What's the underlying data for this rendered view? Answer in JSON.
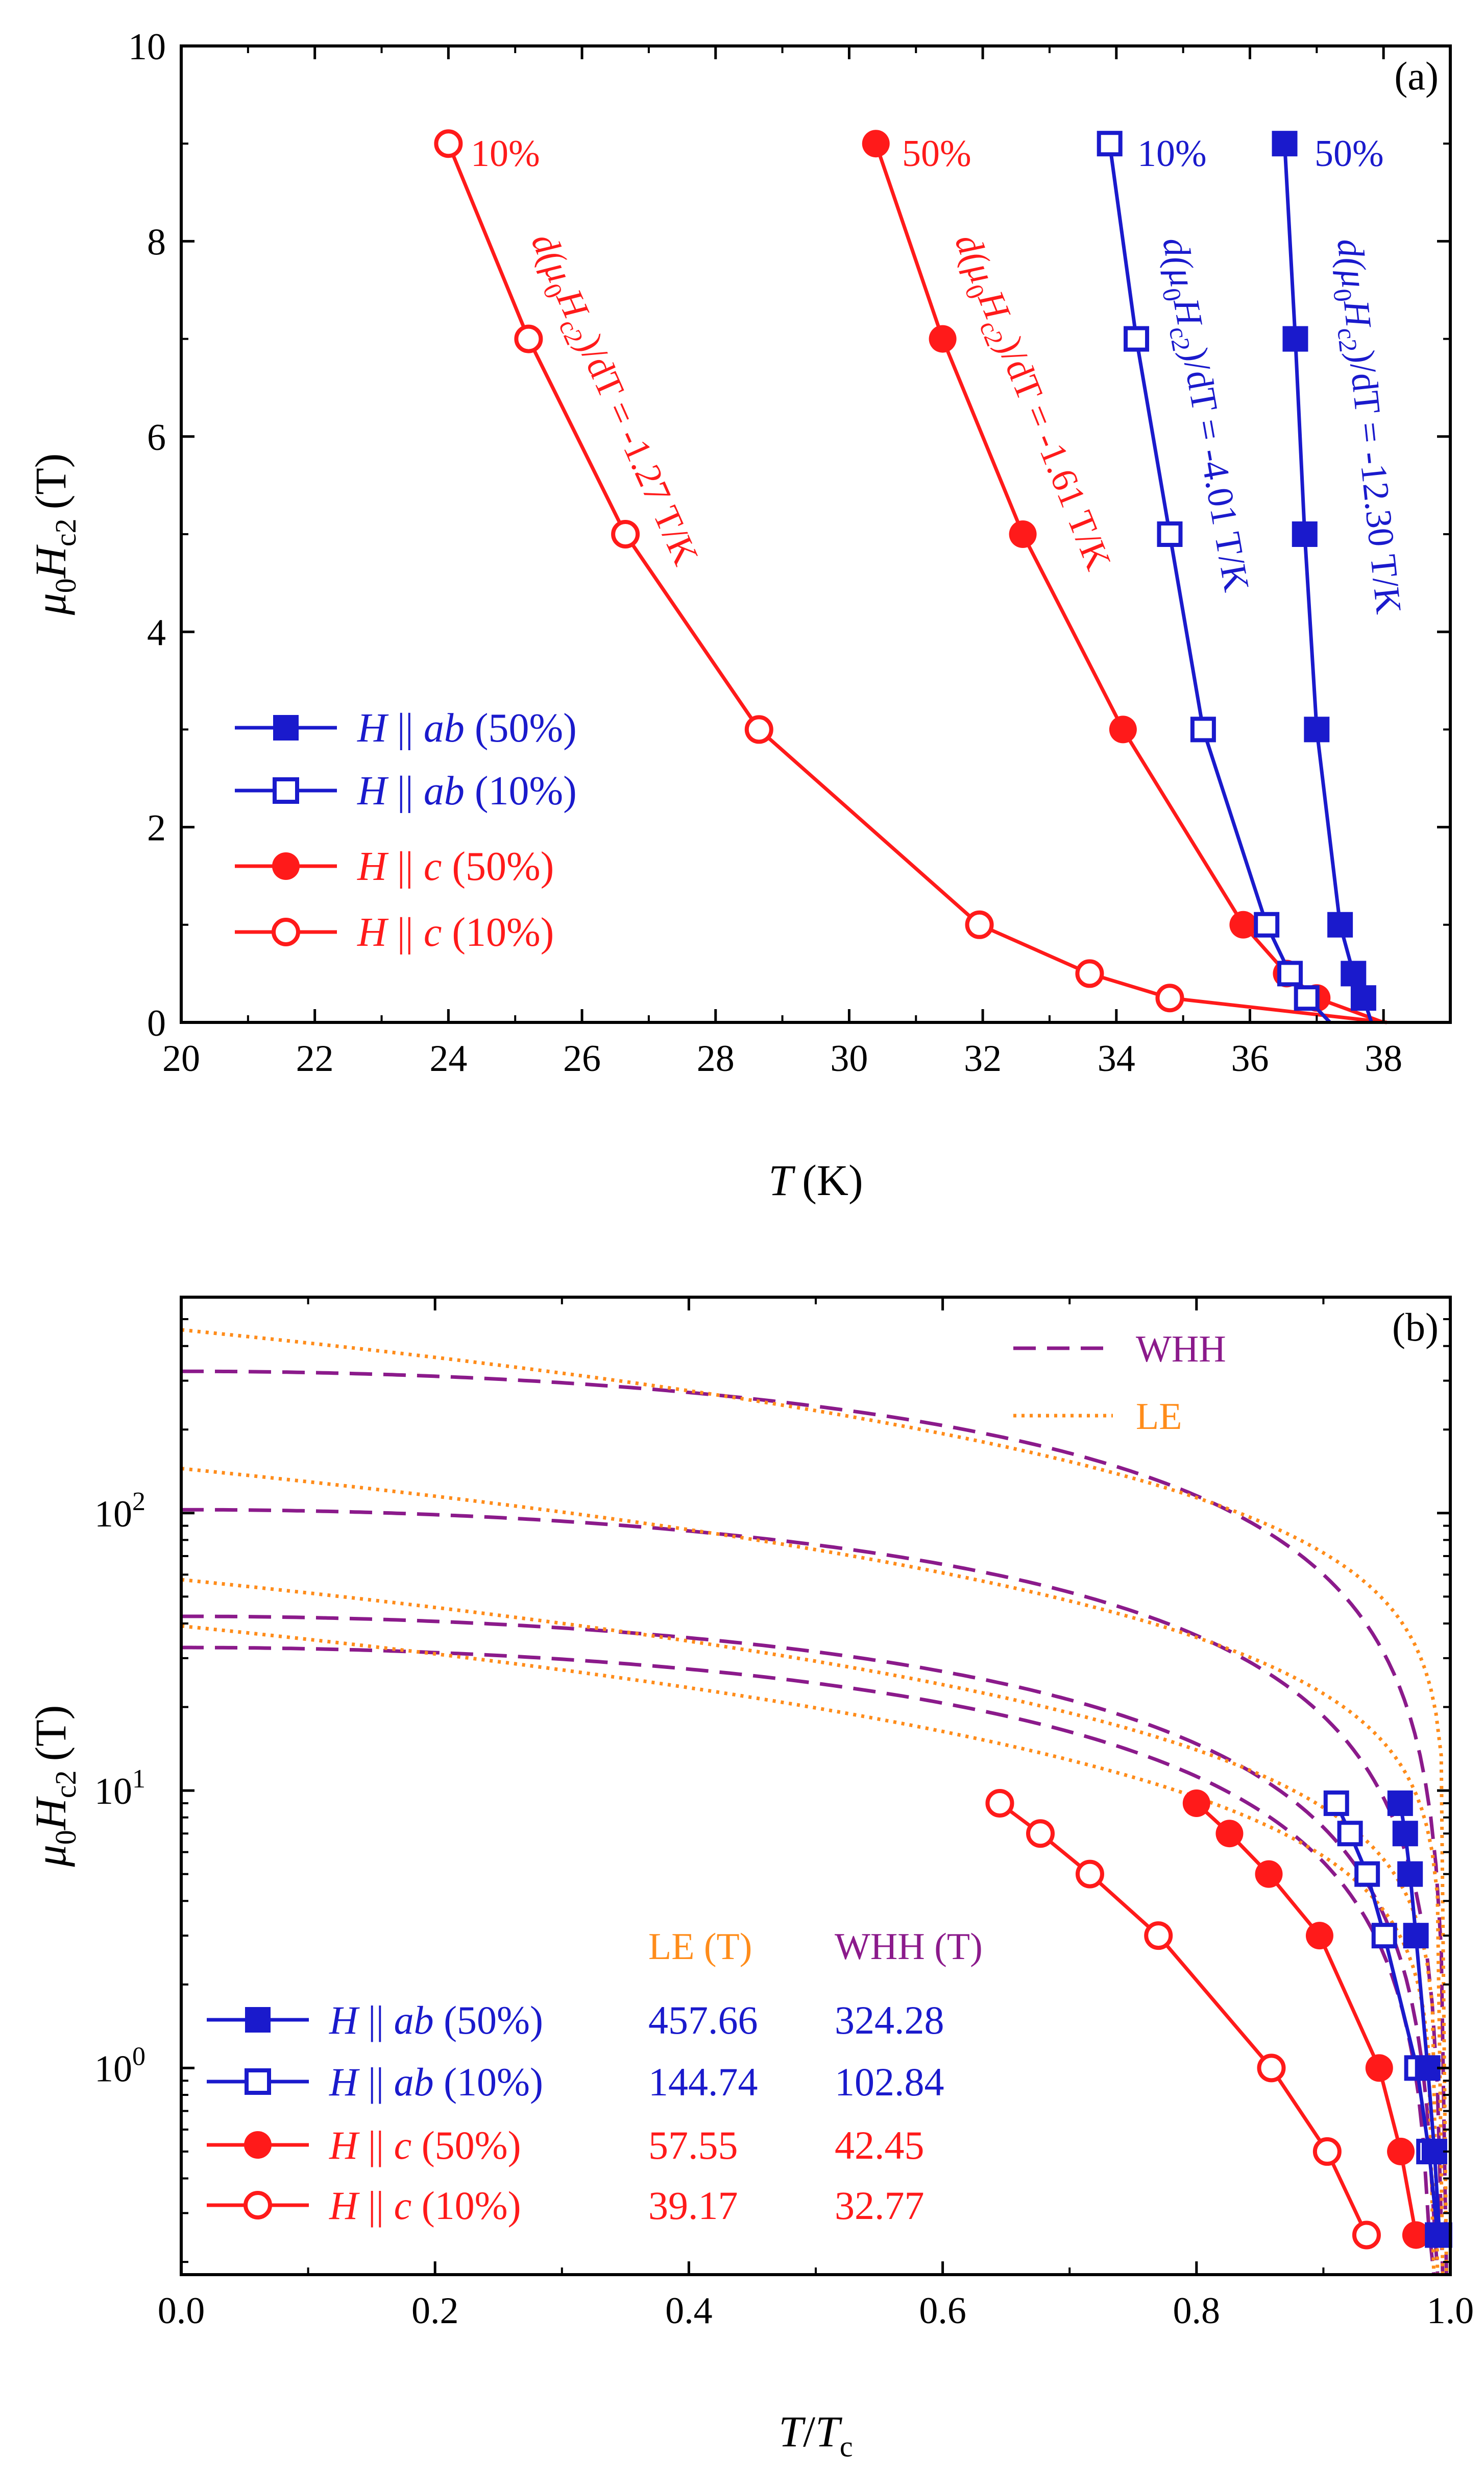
{
  "colors": {
    "red": "#ff1a1a",
    "blue": "#1a1acc",
    "purple": "#8b1a8b",
    "orange": "#ff8c1a",
    "axis": "#000000"
  },
  "panel_a": {
    "label": "(a)",
    "ylabel_main": "μ",
    "ylabel_sub0": "0",
    "ylabel_H": "H",
    "ylabel_subc2": "c2",
    "ylabel_unit": "(T)",
    "xlabel_main": "T",
    "xlabel_unit": "(K)",
    "slope_labels": [
      {
        "text_pre": "d(μ",
        "sub0": "0",
        "mid": "H",
        "subc2": "c2",
        "text_post": ")/dT = -1.27 T/K",
        "series": "c10"
      },
      {
        "text_pre": "d(μ",
        "sub0": "0",
        "mid": "H",
        "subc2": "c2",
        "text_post": ")/dT = -1.61 T/K",
        "series": "c50"
      },
      {
        "text_pre": "d(μ",
        "sub0": "0",
        "mid": "H",
        "subc2": "c2",
        "text_post": ")/dT = -4.01 T/K",
        "series": "ab10"
      },
      {
        "text_pre": "d(μ",
        "sub0": "0",
        "mid": "H",
        "subc2": "c2",
        "text_post": ")/dT = -12.30 T/K",
        "series": "ab50"
      }
    ],
    "point_labels": [
      {
        "text": "10%",
        "series": "c10"
      },
      {
        "text": "50%",
        "series": "c50"
      },
      {
        "text": "10%",
        "series": "ab10"
      },
      {
        "text": "50%",
        "series": "ab50"
      }
    ],
    "legend": [
      {
        "pre": "H",
        "sym": " || ",
        "ax": "ab",
        "pct": " (50%)",
        "series": "ab50"
      },
      {
        "pre": "H",
        "sym": " || ",
        "ax": "ab",
        "pct": " (10%)",
        "series": "ab10"
      },
      {
        "pre": "H",
        "sym": " || ",
        "ax": "c",
        "pct": " (50%)",
        "series": "c50"
      },
      {
        "pre": "H",
        "sym": " || ",
        "ax": "c",
        "pct": " (10%)",
        "series": "c10"
      }
    ]
  },
  "panel_b": {
    "label": "(b)",
    "ylabel_main": "μ",
    "ylabel_sub0": "0",
    "ylabel_H": "H",
    "ylabel_subc2": "c2",
    "ylabel_unit": "(T)",
    "xlabel_T": "T",
    "xlabel_slash": "/",
    "xlabel_Tc": "T",
    "xlabel_subc": "c",
    "fit_legend": [
      {
        "text": "WHH",
        "style": "dashed"
      },
      {
        "text": "LE",
        "style": "dotted"
      }
    ],
    "table_header": {
      "le": "LE (T)",
      "whh": "WHH (T)"
    },
    "legend": [
      {
        "pre": "H",
        "sym": " || ",
        "ax": "ab",
        "pct": " (50%)",
        "le": "457.66",
        "whh": "324.28",
        "series": "ab50"
      },
      {
        "pre": "H",
        "sym": " || ",
        "ax": "ab",
        "pct": " (10%)",
        "le": "144.74",
        "whh": "102.84",
        "series": "ab10"
      },
      {
        "pre": "H",
        "sym": " || ",
        "ax": "c",
        "pct": " (50%)",
        "le": "57.55",
        "whh": "42.45",
        "series": "c50"
      },
      {
        "pre": "H",
        "sym": " || ",
        "ax": "c",
        "pct": " (10%)",
        "le": "39.17",
        "whh": "32.77",
        "series": "c10"
      }
    ]
  },
  "chart_data": [
    {
      "type": "line",
      "panel": "a",
      "title": "(a)",
      "xlabel": "T (K)",
      "ylabel": "μ0Hc2 (T)",
      "xlim": [
        20,
        39
      ],
      "ylim": [
        0,
        10
      ],
      "xticks": [
        20,
        22,
        24,
        26,
        28,
        30,
        32,
        34,
        36,
        38
      ],
      "yticks": [
        0,
        2,
        4,
        6,
        8,
        10
      ],
      "yticks_minor": [
        1,
        3,
        5,
        7,
        9
      ],
      "xticks_minor": [
        21,
        23,
        25,
        27,
        29,
        31,
        33,
        35,
        37
      ],
      "series": [
        {
          "name": "H || ab (50%)",
          "key": "ab50",
          "color": "blue",
          "filled": true,
          "marker": "square",
          "x": [
            36.52,
            36.68,
            36.82,
            37.0,
            37.35,
            37.55,
            37.7,
            37.82
          ],
          "y": [
            9,
            7,
            5,
            3,
            1,
            0.5,
            0.25,
            0
          ],
          "slope": -12.3
        },
        {
          "name": "H || ab (10%)",
          "key": "ab10",
          "color": "blue",
          "filled": false,
          "marker": "square",
          "x": [
            33.9,
            34.3,
            34.8,
            35.3,
            36.25,
            36.6,
            36.85,
            37.2
          ],
          "y": [
            9,
            7,
            5,
            3,
            1,
            0.5,
            0.25,
            0
          ],
          "slope": -4.01
        },
        {
          "name": "H || c (50%)",
          "key": "c50",
          "color": "red",
          "filled": true,
          "marker": "circle",
          "x": [
            30.4,
            31.4,
            32.6,
            34.1,
            35.9,
            36.55,
            37.0,
            38.0
          ],
          "y": [
            9,
            7,
            5,
            3,
            1,
            0.5,
            0.25,
            0
          ],
          "slope": -1.61
        },
        {
          "name": "H || c (10%)",
          "key": "c10",
          "color": "red",
          "filled": false,
          "marker": "circle",
          "x": [
            24.0,
            25.2,
            26.65,
            28.65,
            31.95,
            33.6,
            34.8,
            38.05
          ],
          "y": [
            9,
            7,
            5,
            3,
            1,
            0.5,
            0.25,
            0
          ],
          "slope": -1.27
        }
      ]
    },
    {
      "type": "line",
      "panel": "b",
      "title": "(b)",
      "xlabel": "T/Tc",
      "ylabel": "μ0Hc2 (T)",
      "yscale": "log",
      "xlim": [
        0,
        1.0
      ],
      "ylim": [
        0.18,
        600
      ],
      "xticks": [
        0.0,
        0.2,
        0.4,
        0.6,
        0.8,
        1.0
      ],
      "yticks": [
        1,
        10,
        100
      ],
      "ytick_labels": [
        "10^0",
        "10^1",
        "10^2"
      ],
      "series": [
        {
          "name": "H || ab (50%)",
          "key": "ab50",
          "color": "blue",
          "filled": true,
          "marker": "square",
          "x": [
            0.9605,
            0.9645,
            0.9683,
            0.9729,
            0.9822,
            0.9875,
            0.9915,
            0.9947
          ],
          "y": [
            9,
            7,
            5,
            3,
            1,
            0.5,
            0.25,
            0.25
          ],
          "le": 457.66,
          "whh": 324.28
        },
        {
          "name": "H || ab (10%)",
          "key": "ab10",
          "color": "blue",
          "filled": false,
          "marker": "square",
          "x": [
            0.9102,
            0.921,
            0.9345,
            0.948,
            0.9737,
            0.9832,
            0.99,
            0.995
          ],
          "y": [
            9,
            7,
            5,
            3,
            1,
            0.5,
            0.25,
            0.25
          ],
          "le": 144.74,
          "whh": 102.84
        },
        {
          "name": "H || c (50%)",
          "key": "c50",
          "color": "red",
          "filled": true,
          "marker": "circle",
          "x": [
            0.8,
            0.826,
            0.857,
            0.897,
            0.944,
            0.961,
            0.973,
            0.973
          ],
          "y": [
            9,
            7,
            5,
            3,
            1,
            0.5,
            0.25,
            0.25
          ],
          "le": 57.55,
          "whh": 42.45
        },
        {
          "name": "H || c (10%)",
          "key": "c10",
          "color": "red",
          "filled": false,
          "marker": "circle",
          "x": [
            0.645,
            0.677,
            0.716,
            0.77,
            0.859,
            0.903,
            0.934,
            0.934
          ],
          "y": [
            9,
            7,
            5,
            3,
            1,
            0.5,
            0.25,
            0.25
          ],
          "le": 39.17,
          "whh": 32.77
        }
      ]
    }
  ]
}
